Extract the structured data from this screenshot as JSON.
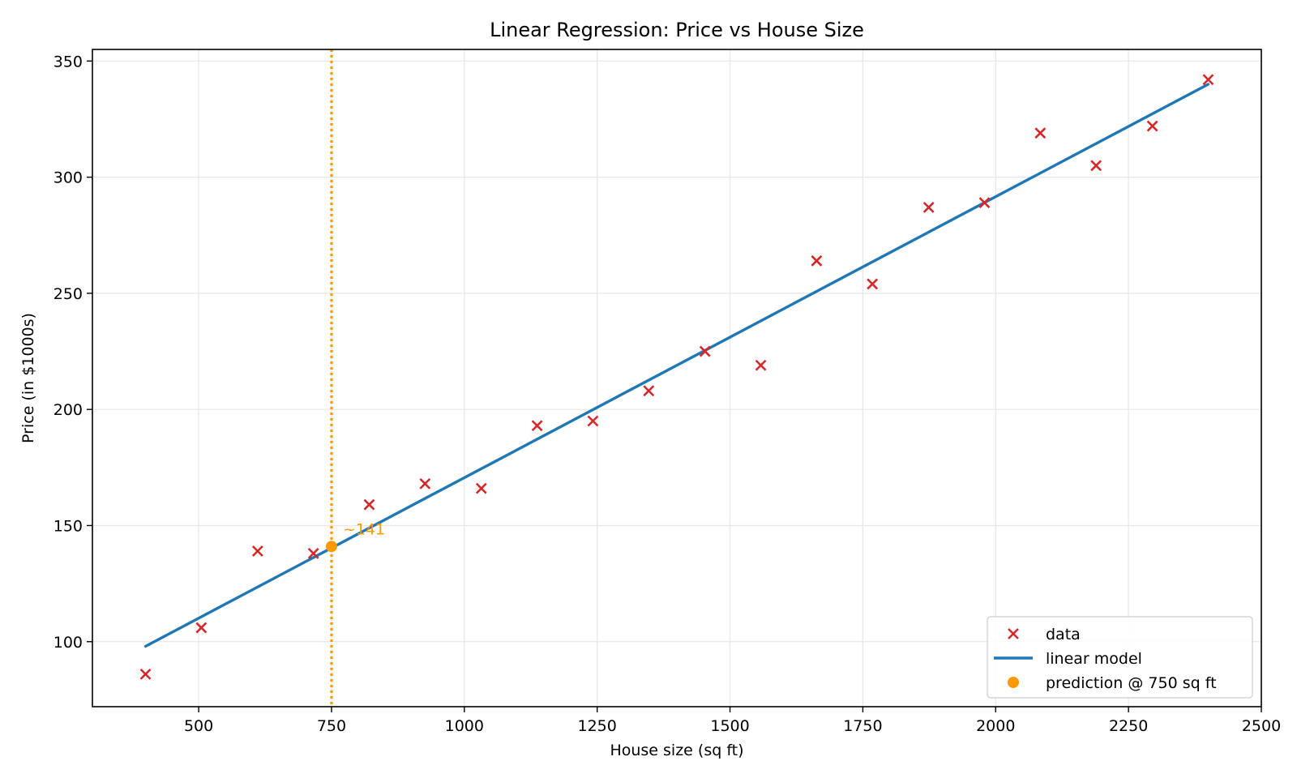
{
  "chart_data": {
    "type": "scatter",
    "title": "Linear Regression: Price vs House Size",
    "xlabel": "House size (sq ft)",
    "ylabel": "Price (in $1000s)",
    "xlim": [
      300,
      2500
    ],
    "ylim": [
      72,
      355
    ],
    "xticks": [
      500,
      750,
      1000,
      1250,
      1500,
      1750,
      2000,
      2250,
      2500
    ],
    "yticks": [
      100,
      150,
      200,
      250,
      300,
      350
    ],
    "grid": true,
    "legend_position": "bottom-right",
    "series": [
      {
        "name": "data",
        "kind": "scatter",
        "marker": "x",
        "color": "#d62728",
        "x": [
          400,
          505,
          611,
          716,
          821,
          926,
          1032,
          1137,
          1242,
          1347,
          1453,
          1558,
          1663,
          1768,
          1874,
          1979,
          2084,
          2189,
          2295,
          2400
        ],
        "y": [
          86,
          106,
          139,
          138,
          159,
          168,
          166,
          193,
          195,
          208,
          225,
          219,
          264,
          254,
          287,
          289,
          319,
          305,
          322,
          342
        ]
      },
      {
        "name": "linear model",
        "kind": "line",
        "color": "#1f77b4",
        "x": [
          400,
          2400
        ],
        "y": [
          98,
          340
        ]
      },
      {
        "name": "prediction @ 750 sq ft",
        "kind": "point",
        "color": "#ff9900",
        "x": [
          750
        ],
        "y": [
          141
        ]
      }
    ],
    "vline": {
      "x": 750,
      "color": "#ff9900",
      "style": "dotted"
    },
    "annotation": {
      "text": "~141",
      "x": 750,
      "y": 141,
      "color": "#ff9900"
    }
  }
}
